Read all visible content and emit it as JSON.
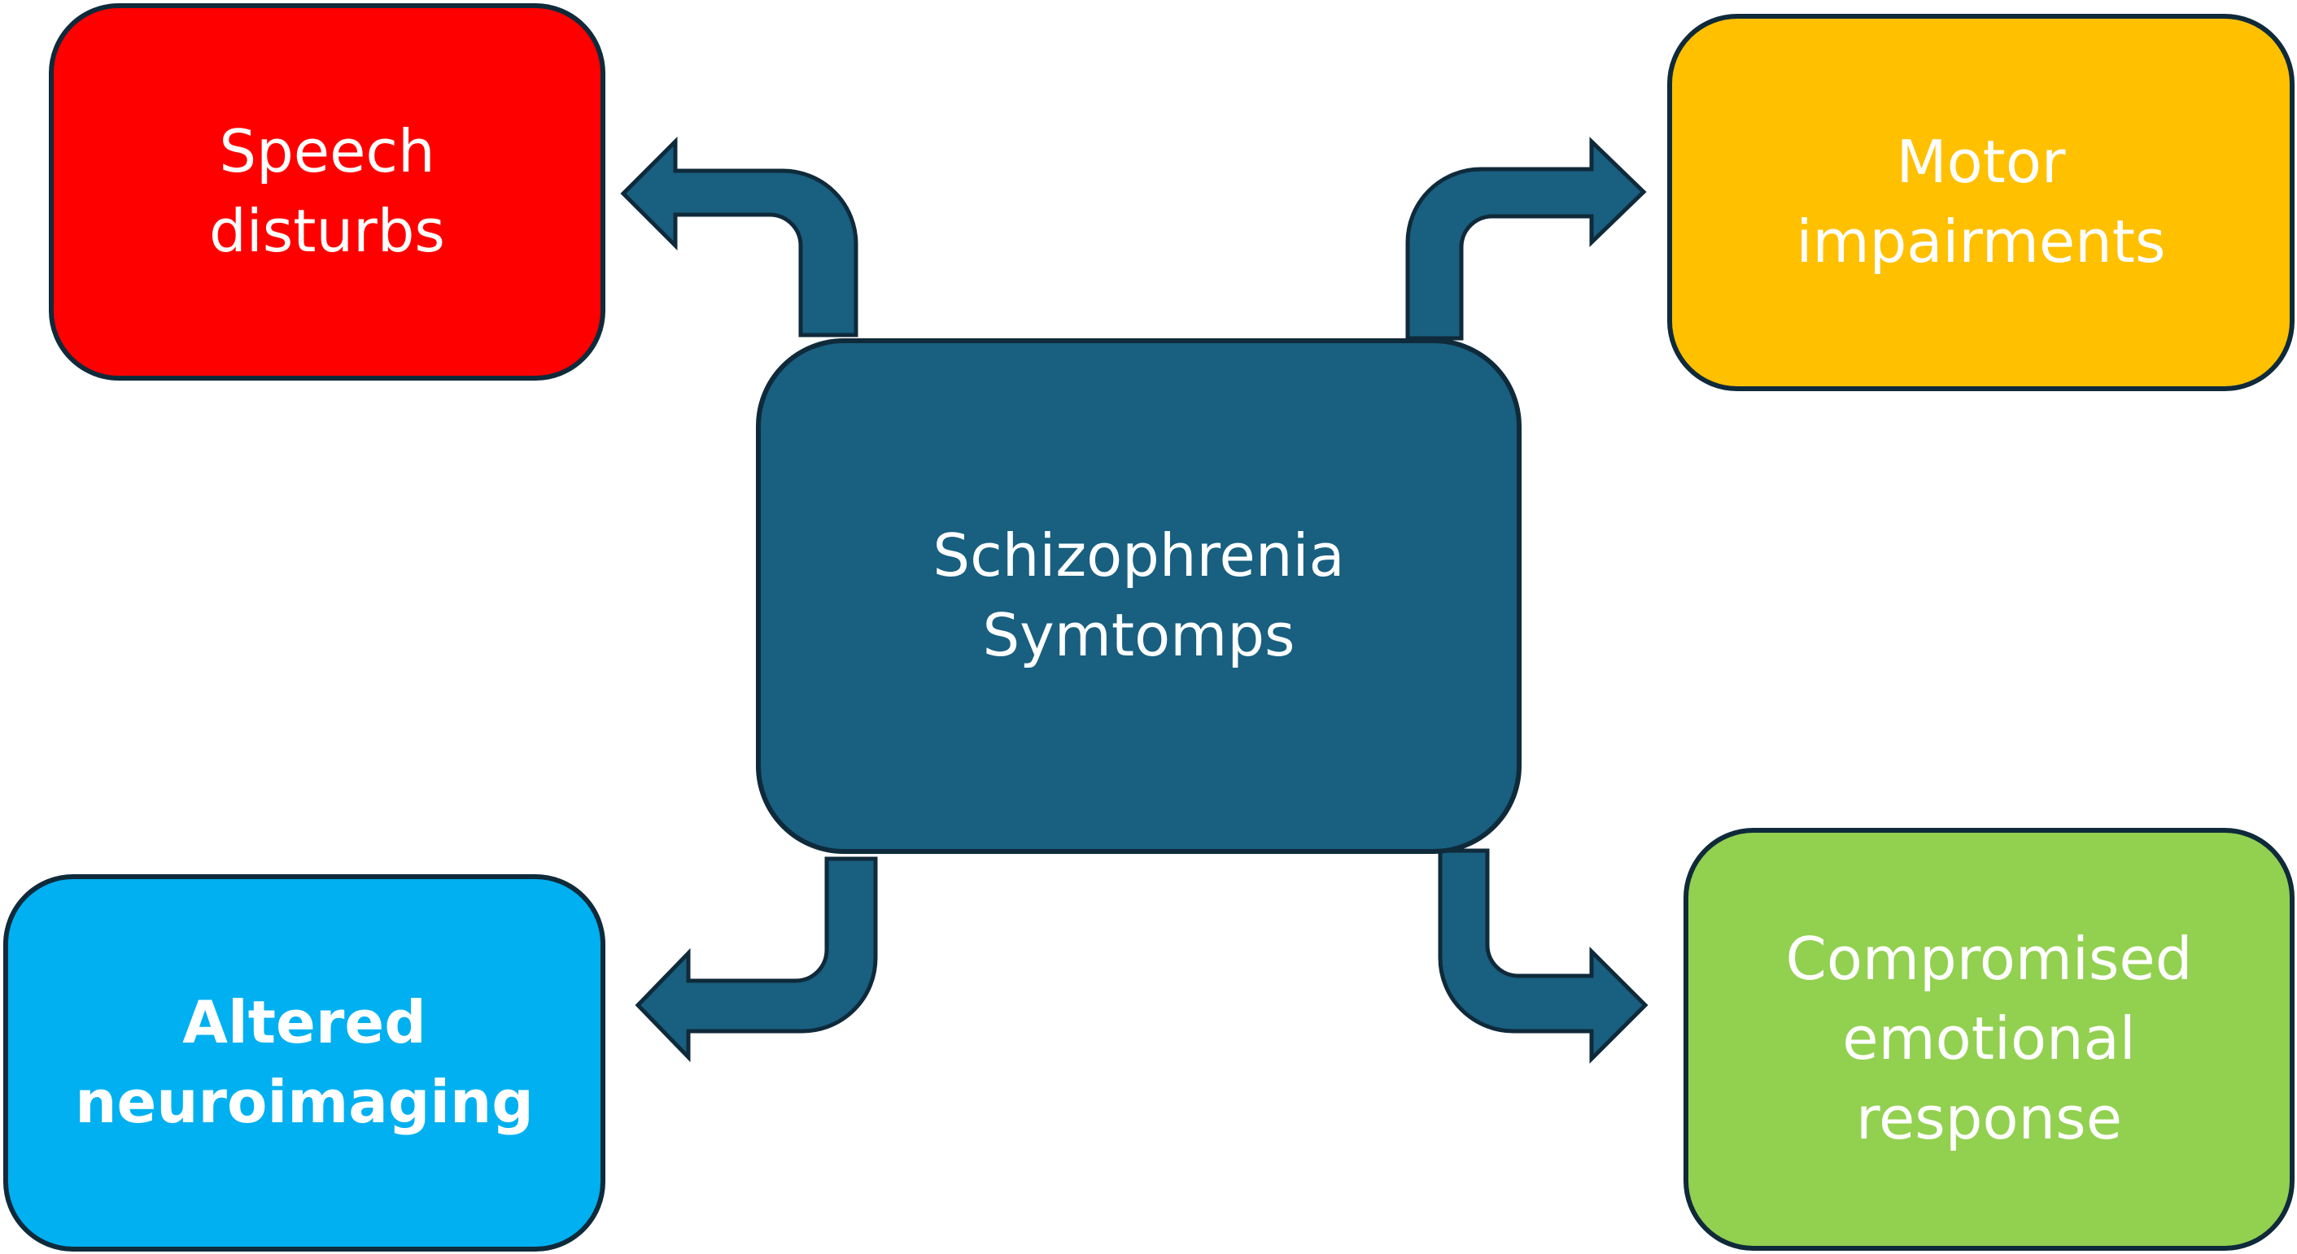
{
  "center": {
    "lines": [
      "Schizophrenia",
      "Symtomps"
    ],
    "color": "#185f80"
  },
  "nodes": {
    "speech": {
      "lines": [
        "Speech",
        "disturbs"
      ],
      "color": "#ff0000"
    },
    "motor": {
      "lines": [
        "Motor",
        "impairments"
      ],
      "color": "#ffc000"
    },
    "neuro": {
      "lines": [
        "Altered",
        "neuroimaging"
      ],
      "color": "#00b0f0"
    },
    "emotion": {
      "lines": [
        "Compromised",
        "emotional",
        "response"
      ],
      "color": "#92d050"
    }
  },
  "arrow_color": "#185f80",
  "outline_color": "#0f2a3a"
}
